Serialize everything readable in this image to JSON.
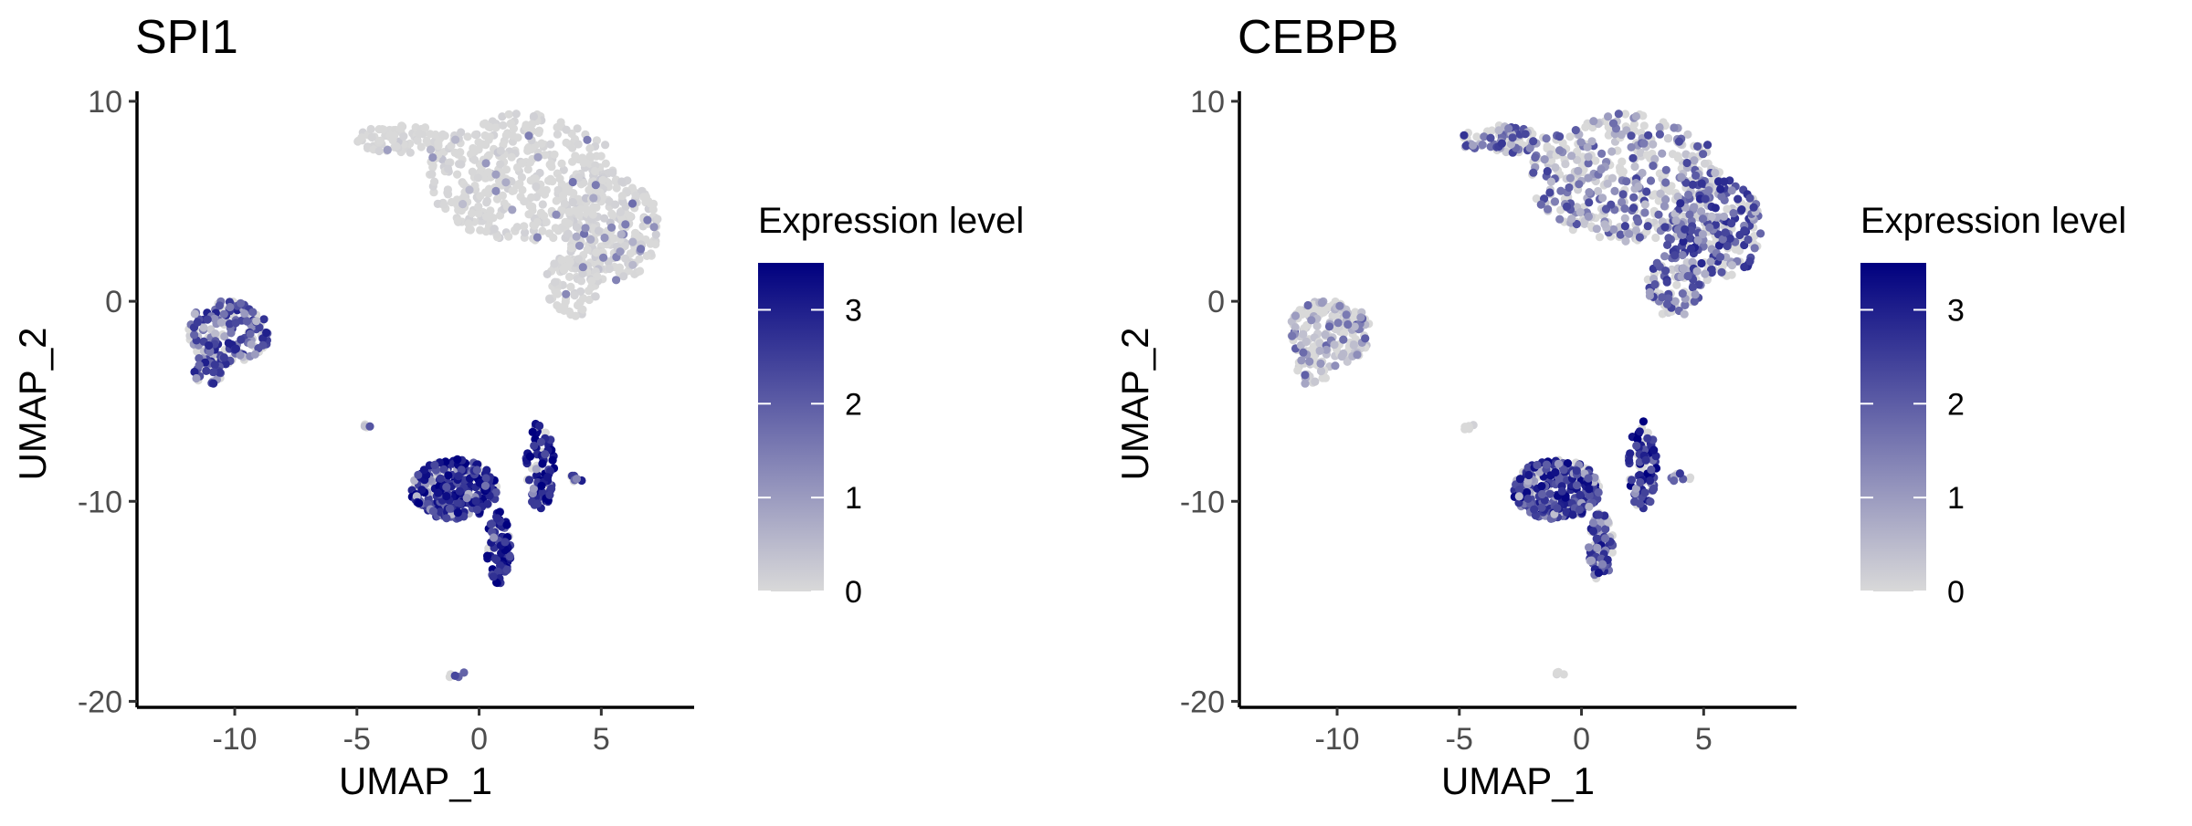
{
  "chart_data": [
    {
      "type": "scatter",
      "title": "SPI1",
      "xlabel": "UMAP_1",
      "ylabel": "UMAP_2",
      "xlim": [
        -14,
        8.8
      ],
      "ylim": [
        -20.3,
        10.5
      ],
      "x_ticks": [
        -10,
        -5,
        0,
        5
      ],
      "x_tick_labels": [
        "-10",
        "-5",
        "0",
        "5"
      ],
      "y_ticks": [
        -20,
        -10,
        0,
        10
      ],
      "y_tick_labels": [
        "-20",
        "-10",
        "0",
        "10"
      ],
      "grid": false,
      "legend": {
        "title": "Expression level",
        "placement": "right",
        "range": [
          0,
          3.5
        ],
        "ticks": [
          0,
          1,
          2,
          3
        ],
        "tick_labels": [
          "0",
          "1",
          "2",
          "3"
        ],
        "low_color": "#d9d9d9",
        "high_color": "#00007f"
      },
      "clusters": [
        {
          "name": "",
          "cx": 1.8,
          "cy": 6.2,
          "rx": 3.9,
          "ry": 3.2,
          "n": 420,
          "mean_expr": 0.18,
          "hi_frac": 0.05
        },
        {
          "name": "",
          "cx": -3.2,
          "cy": 8.1,
          "rx": 1.9,
          "ry": 0.7,
          "n": 80,
          "mean_expr": 0.12,
          "hi_frac": 0.03
        },
        {
          "name": "",
          "cx": 5.4,
          "cy": 3.6,
          "rx": 2.0,
          "ry": 2.6,
          "n": 250,
          "mean_expr": 0.25,
          "hi_frac": 0.08
        },
        {
          "name": "",
          "cx": 3.8,
          "cy": 0.8,
          "rx": 1.1,
          "ry": 1.6,
          "n": 80,
          "mean_expr": 0.2,
          "hi_frac": 0.05
        },
        {
          "name": "",
          "cx": -10.3,
          "cy": -1.6,
          "rx": 1.7,
          "ry": 1.7,
          "n": 170,
          "mean_expr": 1.6,
          "hi_frac": 0.5
        },
        {
          "name": "",
          "cx": -11.0,
          "cy": -3.4,
          "rx": 0.7,
          "ry": 0.8,
          "n": 25,
          "mean_expr": 1.7,
          "hi_frac": 0.55
        },
        {
          "name": "",
          "cx": -1.0,
          "cy": -9.4,
          "rx": 1.8,
          "ry": 1.5,
          "n": 280,
          "mean_expr": 2.2,
          "hi_frac": 0.7
        },
        {
          "name": "",
          "cx": 2.5,
          "cy": -8.2,
          "rx": 0.6,
          "ry": 2.2,
          "n": 90,
          "mean_expr": 2.5,
          "hi_frac": 0.8
        },
        {
          "name": "",
          "cx": 0.8,
          "cy": -12.3,
          "rx": 0.5,
          "ry": 1.8,
          "n": 80,
          "mean_expr": 2.5,
          "hi_frac": 0.8
        },
        {
          "name": "",
          "cx": -4.6,
          "cy": -6.3,
          "rx": 0.3,
          "ry": 0.2,
          "n": 5,
          "mean_expr": 1.4,
          "hi_frac": 0.4
        },
        {
          "name": "",
          "cx": 4.0,
          "cy": -8.8,
          "rx": 0.5,
          "ry": 0.2,
          "n": 8,
          "mean_expr": 2.0,
          "hi_frac": 0.6
        },
        {
          "name": "",
          "cx": -0.9,
          "cy": -18.7,
          "rx": 0.4,
          "ry": 0.2,
          "n": 5,
          "mean_expr": 1.6,
          "hi_frac": 0.5
        }
      ]
    },
    {
      "type": "scatter",
      "title": "CEBPB",
      "xlabel": "UMAP_1",
      "ylabel": "UMAP_2",
      "xlim": [
        -14,
        8.8
      ],
      "ylim": [
        -20.3,
        10.5
      ],
      "x_ticks": [
        -10,
        -5,
        0,
        5
      ],
      "x_tick_labels": [
        "-10",
        "-5",
        "0",
        "5"
      ],
      "y_ticks": [
        -20,
        -10,
        0,
        10
      ],
      "y_tick_labels": [
        "-20",
        "-10",
        "0",
        "10"
      ],
      "grid": false,
      "legend": {
        "title": "Expression level",
        "placement": "right",
        "range": [
          0,
          3.5
        ],
        "ticks": [
          0,
          1,
          2,
          3
        ],
        "tick_labels": [
          "0",
          "1",
          "2",
          "3"
        ],
        "low_color": "#d9d9d9",
        "high_color": "#00007f"
      },
      "clusters": [
        {
          "name": "",
          "cx": 1.8,
          "cy": 6.2,
          "rx": 3.9,
          "ry": 3.2,
          "n": 420,
          "mean_expr": 1.0,
          "hi_frac": 0.3
        },
        {
          "name": "",
          "cx": -3.2,
          "cy": 8.1,
          "rx": 1.9,
          "ry": 0.7,
          "n": 80,
          "mean_expr": 1.2,
          "hi_frac": 0.35
        },
        {
          "name": "",
          "cx": 5.4,
          "cy": 3.6,
          "rx": 2.0,
          "ry": 2.6,
          "n": 250,
          "mean_expr": 1.5,
          "hi_frac": 0.45
        },
        {
          "name": "",
          "cx": 3.8,
          "cy": 0.8,
          "rx": 1.1,
          "ry": 1.6,
          "n": 80,
          "mean_expr": 1.3,
          "hi_frac": 0.4
        },
        {
          "name": "",
          "cx": -10.3,
          "cy": -1.6,
          "rx": 1.7,
          "ry": 1.7,
          "n": 170,
          "mean_expr": 0.7,
          "hi_frac": 0.2
        },
        {
          "name": "",
          "cx": -11.0,
          "cy": -3.4,
          "rx": 0.7,
          "ry": 0.8,
          "n": 25,
          "mean_expr": 0.6,
          "hi_frac": 0.18
        },
        {
          "name": "",
          "cx": -1.0,
          "cy": -9.4,
          "rx": 1.8,
          "ry": 1.5,
          "n": 280,
          "mean_expr": 2.0,
          "hi_frac": 0.6
        },
        {
          "name": "",
          "cx": 2.5,
          "cy": -8.2,
          "rx": 0.6,
          "ry": 2.2,
          "n": 90,
          "mean_expr": 2.2,
          "hi_frac": 0.7
        },
        {
          "name": "",
          "cx": 0.8,
          "cy": -12.3,
          "rx": 0.5,
          "ry": 1.8,
          "n": 80,
          "mean_expr": 1.8,
          "hi_frac": 0.55
        },
        {
          "name": "",
          "cx": -4.6,
          "cy": -6.3,
          "rx": 0.3,
          "ry": 0.2,
          "n": 5,
          "mean_expr": 0.3,
          "hi_frac": 0.1
        },
        {
          "name": "",
          "cx": 4.0,
          "cy": -8.8,
          "rx": 0.5,
          "ry": 0.2,
          "n": 8,
          "mean_expr": 1.6,
          "hi_frac": 0.5
        },
        {
          "name": "",
          "cx": -0.9,
          "cy": -18.7,
          "rx": 0.4,
          "ry": 0.2,
          "n": 5,
          "mean_expr": 0.3,
          "hi_frac": 0.1
        }
      ]
    }
  ]
}
